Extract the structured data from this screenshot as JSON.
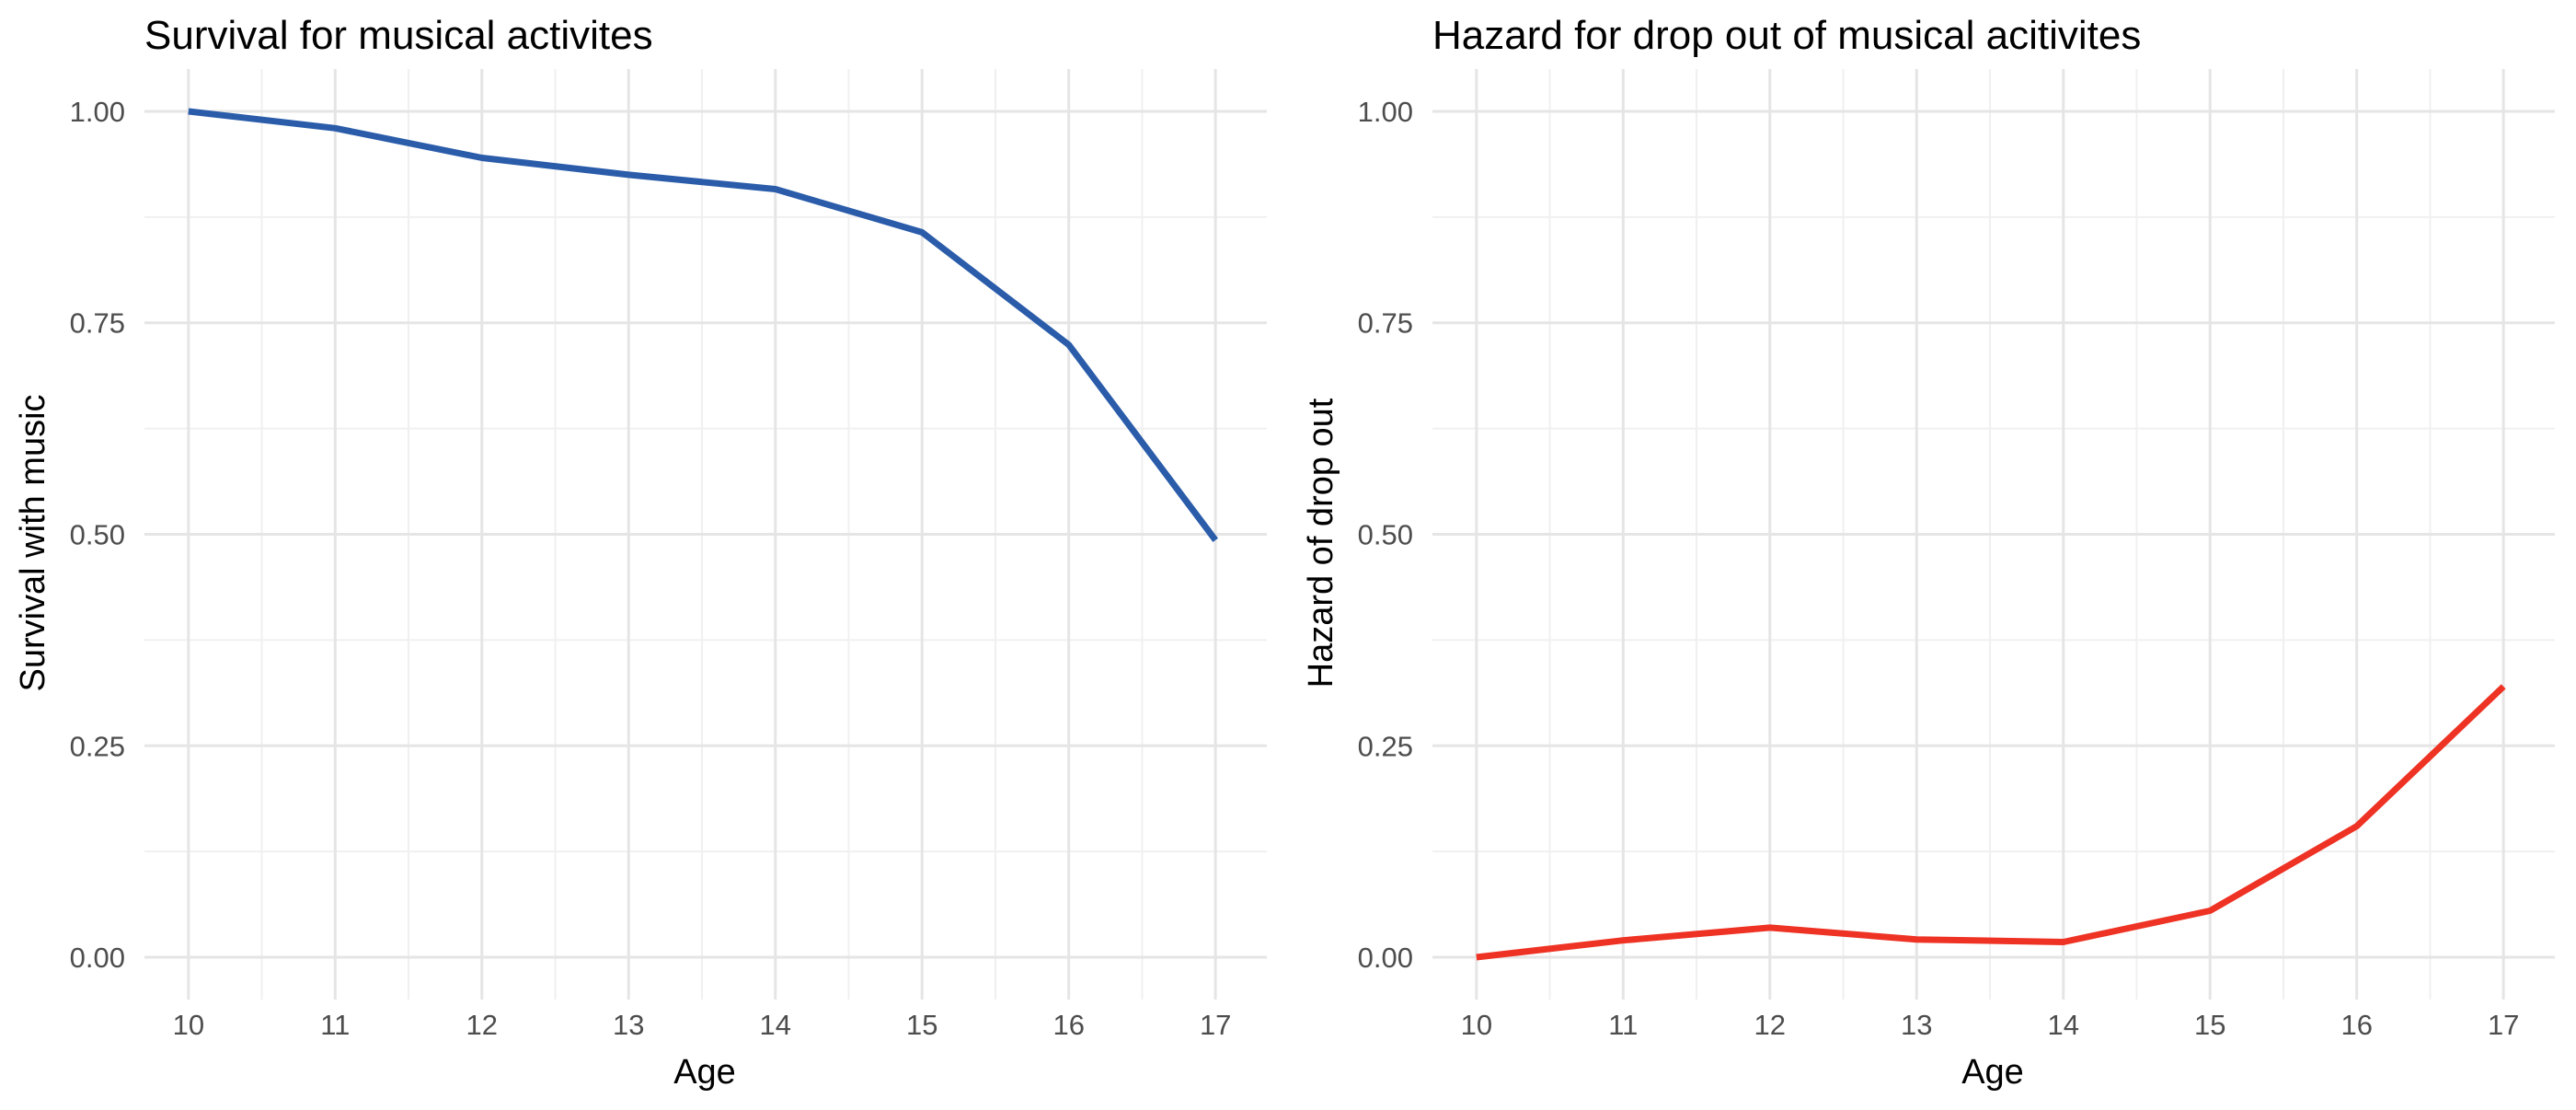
{
  "chart_data": [
    {
      "type": "line",
      "title": "Survival for musical activites",
      "xlabel": "Age",
      "ylabel": "Survival with music",
      "x": [
        10,
        11,
        12,
        13,
        14,
        15,
        16,
        17
      ],
      "xticks": [
        "10",
        "11",
        "12",
        "13",
        "14",
        "15",
        "16",
        "17"
      ],
      "xlim": [
        9.7,
        17.35
      ],
      "ylim": [
        -0.05,
        1.05
      ],
      "yticks": [
        "0.00",
        "0.25",
        "0.50",
        "0.75",
        "1.00"
      ],
      "grid": true,
      "legend": "none",
      "series": [
        {
          "values": [
            1.0,
            0.98,
            0.945,
            0.925,
            0.908,
            0.857,
            0.724,
            0.493
          ],
          "color": "#2a5caa"
        }
      ]
    },
    {
      "type": "line",
      "title": "Hazard for drop out of musical acitivites",
      "xlabel": "Age",
      "ylabel": "Hazard of drop out",
      "x": [
        10,
        11,
        12,
        13,
        14,
        15,
        16,
        17
      ],
      "xticks": [
        "10",
        "11",
        "12",
        "13",
        "14",
        "15",
        "16",
        "17"
      ],
      "xlim": [
        9.7,
        17.35
      ],
      "ylim": [
        -0.05,
        1.05
      ],
      "yticks": [
        "0.00",
        "0.25",
        "0.50",
        "0.75",
        "1.00"
      ],
      "grid": true,
      "legend": "none",
      "series": [
        {
          "values": [
            0.0,
            0.02,
            0.035,
            0.021,
            0.018,
            0.055,
            0.155,
            0.32
          ],
          "color": "#ee3224"
        }
      ]
    }
  ]
}
